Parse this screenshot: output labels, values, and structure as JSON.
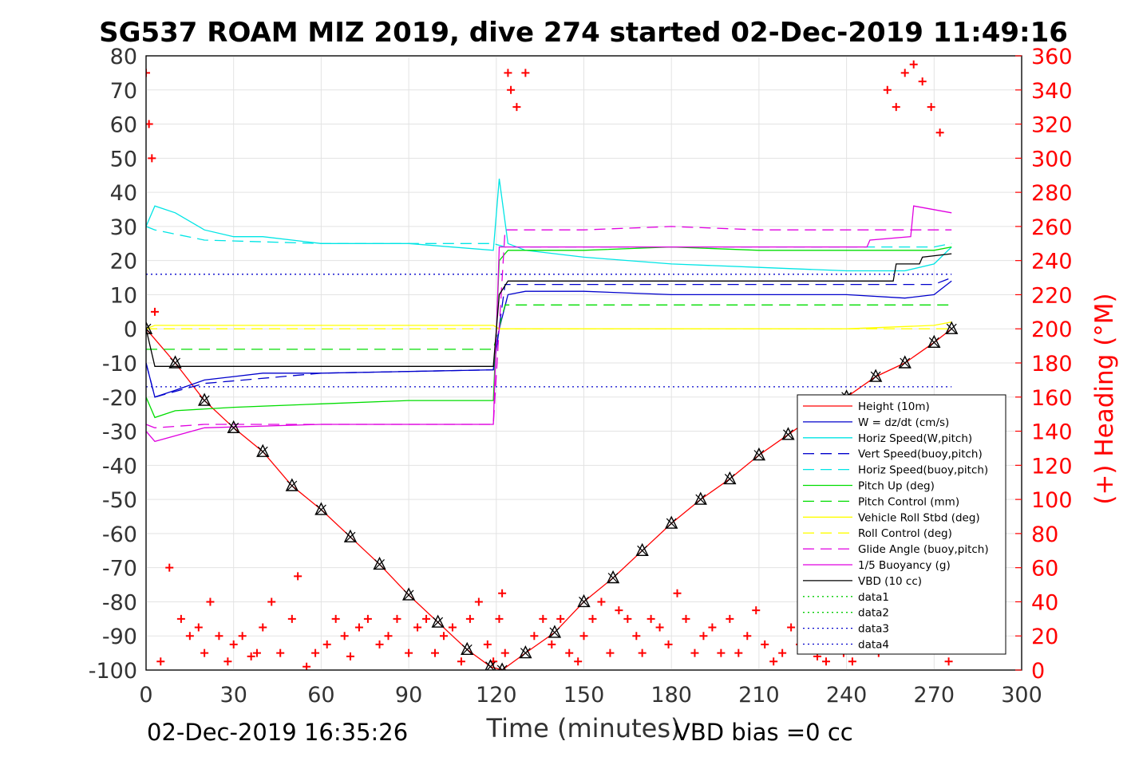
{
  "chart_data": {
    "type": "line",
    "title": "SG537 ROAM MIZ 2019, dive 274 started 02-Dec-2019 11:49:16",
    "xlabel": "Time (minutes)",
    "ylabel_right": "(+) Heading (°M)",
    "xlim": [
      0,
      300
    ],
    "ylim": [
      -100,
      80
    ],
    "ylim_right": [
      0,
      360
    ],
    "x_ticks": [
      "0",
      "30",
      "60",
      "90",
      "120",
      "150",
      "180",
      "210",
      "240",
      "270",
      "300"
    ],
    "y_ticks": [
      "80",
      "70",
      "60",
      "50",
      "40",
      "30",
      "20",
      "10",
      "0",
      "-10",
      "-20",
      "-30",
      "-40",
      "-50",
      "-60",
      "-70",
      "-80",
      "-90",
      "-100"
    ],
    "y_right_ticks": [
      "360",
      "340",
      "320",
      "300",
      "280",
      "260",
      "240",
      "220",
      "200",
      "180",
      "160",
      "140",
      "120",
      "100",
      "80",
      "60",
      "40",
      "20",
      "0"
    ],
    "grid": true,
    "legend_position": "lower-right",
    "footer_left": "02-Dec-2019 16:35:26",
    "footer_right": "VBD bias =0 cc",
    "colors": {
      "height": "#ff0000",
      "w": "#0000cc",
      "horiz_speed": "#00e5e5",
      "pitch": "#00dd00",
      "roll": "#ffff00",
      "buoyancy": "#e000e0",
      "vbd": "#000000",
      "heading": "#ff0000"
    },
    "series": [
      {
        "name": "Height (10m)",
        "style": "solid",
        "color": "#ff0000",
        "x": [
          0,
          10,
          20,
          30,
          40,
          50,
          60,
          70,
          80,
          90,
          100,
          110,
          118,
          122,
          130,
          140,
          150,
          160,
          170,
          180,
          190,
          200,
          210,
          220,
          230,
          240,
          250,
          260,
          270,
          276
        ],
        "y": [
          0,
          -10,
          -21,
          -29,
          -36,
          -46,
          -53,
          -61,
          -69,
          -78,
          -86,
          -94,
          -99,
          -100,
          -95,
          -89,
          -80,
          -73,
          -65,
          -57,
          -50,
          -44,
          -37,
          -31,
          -25,
          -20,
          -14,
          -10,
          -4,
          0
        ]
      },
      {
        "name": "W = dz/dt (cm/s)",
        "style": "solid",
        "color": "#0000cc",
        "x": [
          0,
          3,
          10,
          20,
          30,
          40,
          60,
          90,
          119,
          121,
          124,
          130,
          150,
          180,
          210,
          240,
          260,
          270,
          276
        ],
        "y": [
          -10,
          -20,
          -18,
          -15,
          -14,
          -13,
          -13,
          -12.5,
          -12,
          0,
          10,
          11,
          11,
          10,
          10,
          10,
          9,
          10,
          14
        ]
      },
      {
        "name": "Horiz Speed(W,pitch)",
        "style": "solid",
        "color": "#00e5e5",
        "x": [
          0,
          3,
          10,
          20,
          30,
          40,
          60,
          90,
          119,
          121,
          124,
          130,
          150,
          180,
          210,
          240,
          260,
          270,
          276
        ],
        "y": [
          30,
          36,
          34,
          29,
          27,
          27,
          25,
          25,
          23,
          44,
          25,
          23,
          21,
          19,
          18,
          17,
          17,
          19,
          24
        ]
      },
      {
        "name": "Vert Speed(buoy,pitch)",
        "style": "dashed",
        "color": "#0000cc",
        "x": [
          0,
          3,
          20,
          60,
          119,
          123,
          150,
          210,
          270,
          276
        ],
        "y": [
          -10,
          -20,
          -16,
          -13,
          -12,
          13,
          13,
          13,
          13,
          15
        ]
      },
      {
        "name": "Horiz Speed(buoy,pitch)",
        "style": "dashed",
        "color": "#00e5e5",
        "x": [
          0,
          3,
          20,
          60,
          119,
          123,
          150,
          210,
          270,
          276
        ],
        "y": [
          30,
          29,
          26,
          25,
          25,
          24,
          24,
          24,
          24,
          25
        ]
      },
      {
        "name": "Pitch Up (deg)",
        "style": "solid",
        "color": "#00dd00",
        "x": [
          0,
          3,
          10,
          30,
          60,
          90,
          119,
          121,
          124,
          150,
          180,
          210,
          240,
          270,
          276
        ],
        "y": [
          -20,
          -26,
          -24,
          -23,
          -22,
          -21,
          -21,
          20,
          23,
          23,
          24,
          23,
          23,
          23,
          24
        ]
      },
      {
        "name": "Pitch Control (mm)",
        "style": "dashed",
        "color": "#00dd00",
        "x": [
          0,
          3,
          60,
          119,
          123,
          276
        ],
        "y": [
          -6,
          -6,
          -6,
          -6,
          7,
          7
        ]
      },
      {
        "name": "Vehicle Roll Stbd (deg)",
        "style": "solid",
        "color": "#ffff00",
        "x": [
          0,
          3,
          10,
          30,
          60,
          90,
          119,
          121,
          124,
          150,
          180,
          210,
          240,
          270,
          276
        ],
        "y": [
          0,
          1,
          1,
          1,
          1,
          1,
          1,
          0,
          0,
          0,
          0,
          0,
          0,
          1,
          2
        ]
      },
      {
        "name": "Roll Control (deg)",
        "style": "dashed",
        "color": "#ffff00",
        "x": [
          0,
          276
        ],
        "y": [
          0,
          0
        ]
      },
      {
        "name": "Glide Angle (buoy,pitch)",
        "style": "dashed",
        "color": "#e000e0",
        "x": [
          0,
          3,
          20,
          60,
          119,
          123,
          150,
          180,
          210,
          240,
          270,
          276
        ],
        "y": [
          -28,
          -29,
          -28,
          -28,
          -28,
          29,
          29,
          30,
          29,
          29,
          29,
          29
        ]
      },
      {
        "name": "1/5 Buoyancy (g)",
        "style": "solid",
        "color": "#e000e0",
        "x": [
          0,
          3,
          20,
          60,
          119,
          121,
          124,
          150,
          210,
          247,
          248,
          262,
          263,
          276
        ],
        "y": [
          -30,
          -33,
          -29,
          -28,
          -28,
          24,
          24,
          24,
          24,
          24,
          26,
          27,
          36,
          34
        ]
      },
      {
        "name": "VBD (10 cc)",
        "style": "solid",
        "color": "#000000",
        "x": [
          0,
          3,
          119,
          121,
          124,
          150,
          210,
          256,
          257,
          265,
          266,
          276
        ],
        "y": [
          0,
          -11,
          -11,
          10,
          14,
          14,
          14,
          14,
          19,
          19,
          21,
          22
        ]
      },
      {
        "name": "data1",
        "style": "dotted",
        "color": "#00cc00",
        "x": [],
        "y": []
      },
      {
        "name": "data2",
        "style": "dotted",
        "color": "#00cc00",
        "x": [],
        "y": []
      },
      {
        "name": "data3",
        "style": "dotted",
        "color": "#0000cc",
        "x": [
          0,
          276
        ],
        "y": [
          16,
          16
        ]
      },
      {
        "name": "data4",
        "style": "dotted",
        "color": "#0000cc",
        "x": [
          0,
          276
        ],
        "y": [
          -17,
          -17
        ]
      }
    ],
    "heading_points": {
      "name": "(+) Heading (°M)",
      "marker": "+",
      "color": "#ff0000",
      "axis": "right",
      "x": [
        0,
        1,
        2,
        3,
        5,
        8,
        12,
        15,
        18,
        20,
        22,
        25,
        28,
        30,
        33,
        36,
        38,
        40,
        43,
        46,
        50,
        52,
        55,
        58,
        62,
        65,
        68,
        70,
        73,
        76,
        80,
        83,
        86,
        90,
        93,
        96,
        99,
        102,
        105,
        108,
        111,
        114,
        117,
        119,
        121,
        122,
        123,
        124,
        125,
        127,
        130,
        133,
        136,
        139,
        142,
        145,
        148,
        150,
        153,
        156,
        159,
        162,
        165,
        168,
        170,
        173,
        176,
        179,
        182,
        185,
        188,
        191,
        194,
        197,
        200,
        203,
        206,
        209,
        212,
        215,
        218,
        221,
        224,
        227,
        230,
        233,
        236,
        239,
        242,
        245,
        248,
        251,
        254,
        257,
        260,
        263,
        266,
        269,
        272,
        275
      ],
      "y": [
        350,
        320,
        300,
        210,
        5,
        60,
        30,
        20,
        25,
        10,
        40,
        20,
        5,
        15,
        20,
        8,
        10,
        25,
        40,
        10,
        30,
        55,
        2,
        10,
        15,
        30,
        20,
        8,
        25,
        30,
        15,
        20,
        30,
        10,
        25,
        30,
        10,
        20,
        25,
        5,
        30,
        40,
        15,
        5,
        30,
        45,
        10,
        350,
        340,
        330,
        350,
        20,
        30,
        15,
        30,
        10,
        5,
        20,
        30,
        40,
        10,
        35,
        30,
        20,
        10,
        30,
        25,
        15,
        45,
        30,
        10,
        20,
        25,
        10,
        30,
        10,
        20,
        35,
        15,
        5,
        10,
        25,
        15,
        20,
        8,
        5,
        15,
        10,
        5,
        20,
        15,
        10,
        340,
        330,
        350,
        355,
        345,
        330,
        315,
        5
      ]
    }
  }
}
